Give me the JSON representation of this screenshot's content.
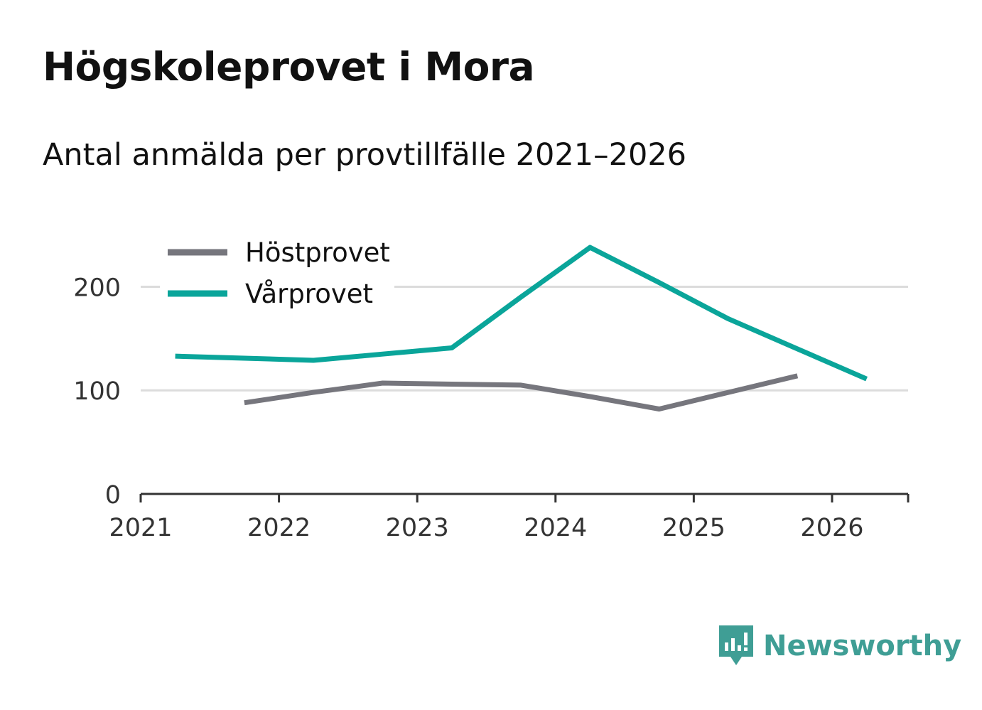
{
  "title": "Högskoleprovet i Mora",
  "subtitle": "Antal anmälda per provtillfälle 2021–2026",
  "brand": {
    "name": "Newsworthy"
  },
  "colors": {
    "hostprovet": "#76767d",
    "varprovet": "#0aa59a",
    "grid": "#dcdcdc",
    "axis": "#333333",
    "brand": "#3f9e95"
  },
  "chart_data": {
    "type": "line",
    "title": "Högskoleprovet i Mora",
    "subtitle": "Antal anmälda per provtillfälle 2021–2026",
    "xlabel": "",
    "ylabel": "",
    "x_ticks": [
      "2021",
      "2022",
      "2023",
      "2024",
      "2025",
      "2026"
    ],
    "y_ticks": [
      "0",
      "100",
      "200"
    ],
    "xlim": [
      2021,
      2026.55
    ],
    "ylim": [
      0,
      260
    ],
    "legend_position": "top-left",
    "series": [
      {
        "name": "Höstprovet",
        "color": "#76767d",
        "x": [
          2021.75,
          2022.25,
          2022.75,
          2023.25,
          2023.75,
          2024.25,
          2024.75,
          2025.25,
          2025.75
        ],
        "values": [
          88,
          98,
          107,
          106,
          105,
          94,
          82,
          98,
          114
        ]
      },
      {
        "name": "Vårprovet",
        "color": "#0aa59a",
        "x": [
          2021.25,
          2021.75,
          2022.25,
          2022.75,
          2023.25,
          2023.75,
          2024.25,
          2024.75,
          2025.25,
          2025.75,
          2026.25
        ],
        "values": [
          133,
          131,
          129,
          135,
          141,
          190,
          238,
          204,
          169,
          140,
          111
        ]
      }
    ]
  }
}
